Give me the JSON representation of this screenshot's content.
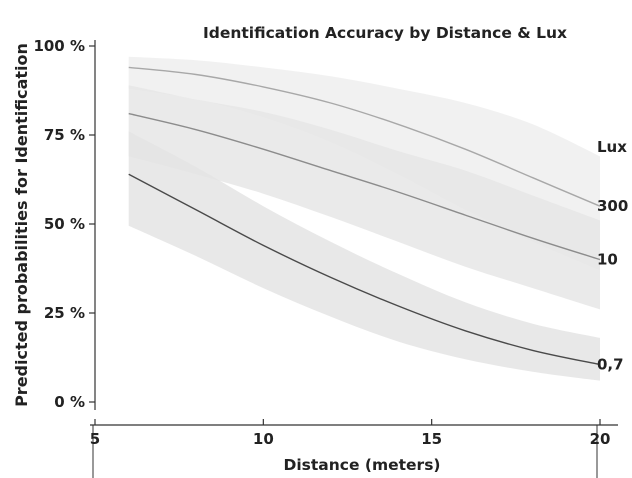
{
  "chart_data": {
    "type": "line",
    "title": "Identification Accuracy by Distance & Lux",
    "xlabel": "Distance (meters)",
    "ylabel": "Predicted probabilities for Identification",
    "legend_title": "Lux",
    "xlim": [
      5,
      20
    ],
    "ylim": [
      0,
      100
    ],
    "x_ticks": [
      5,
      10,
      15,
      20
    ],
    "x_tick_labels": [
      "5",
      "10",
      "15",
      "20"
    ],
    "y_ticks": [
      0,
      25,
      50,
      75,
      100
    ],
    "y_tick_labels": [
      "0 %",
      "25 %",
      "50 %",
      "75 %",
      "100 %"
    ],
    "grid": false,
    "x": [
      6,
      8,
      10,
      12,
      14,
      16,
      18,
      20
    ],
    "series": [
      {
        "name": "300",
        "values": [
          94,
          92,
          88.5,
          84,
          78,
          71,
          63,
          55
        ],
        "lower": [
          88,
          85,
          80,
          73,
          64,
          54,
          45,
          37
        ],
        "upper": [
          97,
          96,
          94,
          91.5,
          88,
          84,
          78,
          69
        ],
        "line_color": "#a8a8a8",
        "band_color": "#eeeeee"
      },
      {
        "name": "10",
        "values": [
          81,
          76.5,
          71,
          65,
          59,
          52.5,
          46,
          40
        ],
        "lower": [
          69,
          64,
          58.5,
          52,
          45,
          38,
          32,
          26
        ],
        "upper": [
          89,
          85,
          81.5,
          76.5,
          70.5,
          65,
          58,
          51
        ],
        "line_color": "#8c8c8c",
        "band_color": "#e6e6e6"
      },
      {
        "name": "0,7",
        "values": [
          64,
          54,
          44,
          35,
          27,
          20,
          14.5,
          10.5
        ],
        "lower": [
          49.5,
          41,
          32,
          24,
          17,
          12,
          8.5,
          6
        ],
        "upper": [
          76,
          66,
          55,
          45,
          36,
          28,
          22,
          18
        ],
        "line_color": "#4a4a4a",
        "band_color": "#e4e4e4"
      }
    ]
  }
}
